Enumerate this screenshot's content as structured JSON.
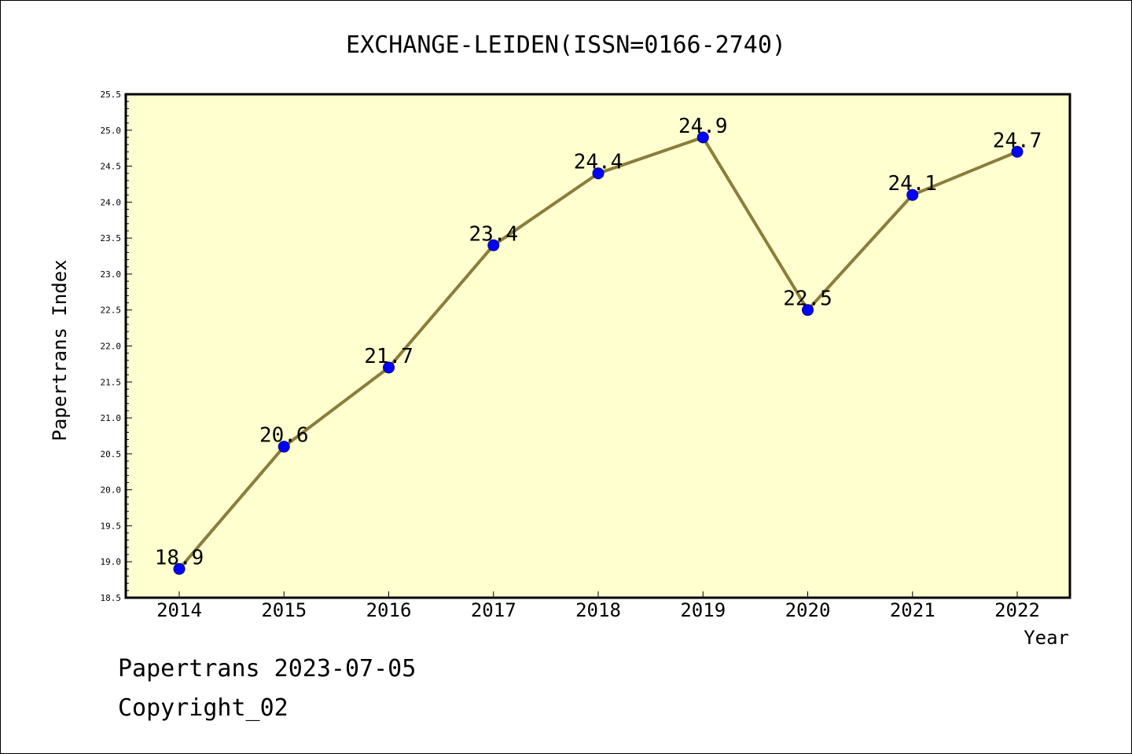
{
  "colors": {
    "plot_background": "#ffffd0",
    "line": "#8b7d3a",
    "marker_fill": "#0000ff",
    "marker_stroke": "#00007a"
  },
  "footer": {
    "line1": "Papertrans 2023-07-05",
    "line2": "Copyright_02"
  },
  "chart_data": {
    "type": "line",
    "title": "EXCHANGE-LEIDEN(ISSN=0166-2740)",
    "xlabel": "Year",
    "ylabel": "Papertrans Index",
    "categories": [
      "2014",
      "2015",
      "2016",
      "2017",
      "2018",
      "2019",
      "2020",
      "2021",
      "2022"
    ],
    "series": [
      {
        "values": [
          18.9,
          20.6,
          21.7,
          23.4,
          24.4,
          24.9,
          22.5,
          24.1,
          24.7
        ]
      }
    ],
    "data_labels": [
      "18.9",
      "20.6",
      "21.7",
      "23.4",
      "24.4",
      "24.9",
      "22.5",
      "24.1",
      "24.7"
    ],
    "ylim": [
      18.5,
      25.5
    ],
    "yticks": [
      "18.5",
      "19.0",
      "19.5",
      "20.0",
      "20.5",
      "21.0",
      "21.5",
      "22.0",
      "22.5",
      "23.0",
      "23.5",
      "24.0",
      "24.5",
      "25.0",
      "25.5"
    ],
    "grid": false,
    "legend": "none"
  }
}
